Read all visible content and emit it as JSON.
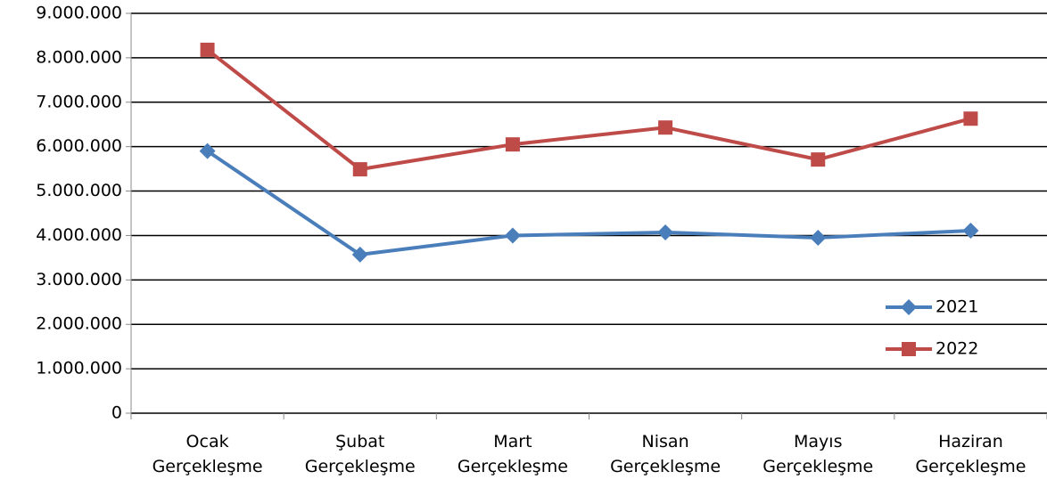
{
  "chart_data": {
    "type": "line",
    "categories": [
      "Ocak Gerçekleşme",
      "Şubat Gerçekleşme",
      "Mart Gerçekleşme",
      "Nisan Gerçekleşme",
      "Mayıs Gerçekleşme",
      "Haziran Gerçekleşme"
    ],
    "series": [
      {
        "name": "2021",
        "color": "#4a7ebb",
        "marker": "diamond",
        "values": [
          5900000,
          3570000,
          4000000,
          4070000,
          3950000,
          4110000
        ]
      },
      {
        "name": "2022",
        "color": "#be4b48",
        "marker": "square",
        "values": [
          8180000,
          5490000,
          6050000,
          6430000,
          5710000,
          6630000
        ]
      }
    ],
    "ylim": [
      0,
      9000000
    ],
    "yticks": [
      0,
      {
        "value": 1000000,
        "label": "1.000.000"
      },
      {
        "value": 2000000,
        "label": "2.000.000"
      },
      {
        "value": 3000000,
        "label": "3.000.000"
      },
      {
        "value": 4000000,
        "label": "4.000.000"
      },
      {
        "value": 5000000,
        "label": "5.000.000"
      },
      {
        "value": 6000000,
        "label": "6.000.000"
      },
      {
        "value": 7000000,
        "label": "7.000.000"
      },
      {
        "value": 8000000,
        "label": "8.000.000"
      },
      {
        "value": 9000000,
        "label": "9.000.000"
      }
    ],
    "grid": true,
    "legend_position": "right"
  }
}
